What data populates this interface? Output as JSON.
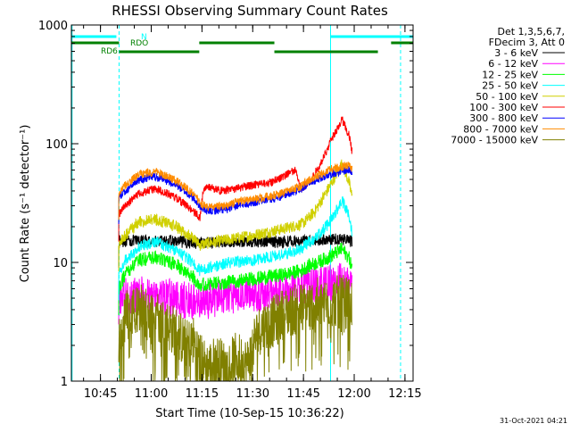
{
  "chart_data": {
    "type": "line",
    "title": "RHESSI Observing Summary Count Rates",
    "xlabel": "Start Time (10-Sep-15 10:36:22)",
    "ylabel": "Count Rate (s⁻¹ detector⁻¹)",
    "x_unit": "minutes after 10:36:22",
    "xlim": [
      0,
      101
    ],
    "ylim": [
      1,
      1000
    ],
    "y_scale": "log",
    "grid": false,
    "legend_position": "top-right",
    "x_ticks": [
      {
        "label": "10:45",
        "x": 8.6
      },
      {
        "label": "11:00",
        "x": 23.6
      },
      {
        "label": "11:15",
        "x": 38.6
      },
      {
        "label": "11:30",
        "x": 53.6
      },
      {
        "label": "11:45",
        "x": 68.6
      },
      {
        "label": "12:00",
        "x": 83.6
      },
      {
        "label": "12:15",
        "x": 98.6
      }
    ],
    "y_ticks": [
      {
        "label": "1",
        "y": 1
      },
      {
        "label": "10",
        "y": 10
      },
      {
        "label": "100",
        "y": 100
      },
      {
        "label": "1000",
        "y": 1000
      }
    ],
    "legend_header": [
      "Det 1,3,5,6,7,",
      "FDecim 3, Att 0"
    ],
    "timestamp": "31-Oct-2021 04:21",
    "series": [
      {
        "name": "3 - 6 keV",
        "color": "#000000",
        "x": [
          14,
          20,
          30,
          38,
          46,
          54,
          62,
          69,
          74,
          80,
          83
        ],
        "y": [
          15,
          15.2,
          15,
          14.6,
          15,
          15,
          15,
          15.2,
          15.5,
          15.8,
          15
        ]
      },
      {
        "name": "6 - 12 keV",
        "color": "#ff00ff",
        "x": [
          14,
          20,
          30,
          38,
          46,
          54,
          62,
          69,
          74,
          80,
          83
        ],
        "y": [
          5,
          5.3,
          5,
          4.6,
          5.2,
          5.4,
          5.6,
          6.2,
          6.5,
          6.9,
          6.6
        ]
      },
      {
        "name": "12 - 25 keV",
        "color": "#00ff00",
        "x": [
          14,
          16,
          20,
          25,
          31,
          36,
          38,
          40,
          46,
          54,
          62,
          68,
          69,
          72,
          76,
          80,
          82,
          83
        ],
        "y": [
          6,
          8,
          10.5,
          11,
          9.5,
          7.5,
          6.5,
          6.5,
          6.8,
          7.3,
          7.8,
          8.5,
          9,
          9.8,
          11,
          13,
          11,
          9
        ]
      },
      {
        "name": "25 - 50 keV",
        "color": "#00ffff",
        "x": [
          14,
          16,
          20,
          25,
          31,
          36,
          38,
          40,
          46,
          54,
          62,
          68,
          69,
          72,
          76,
          80,
          82,
          83
        ],
        "y": [
          8,
          10.5,
          13.5,
          15,
          12.5,
          10,
          8.5,
          9,
          9.8,
          10.5,
          11.5,
          13,
          14,
          16,
          21,
          33,
          25,
          18
        ]
      },
      {
        "name": "50 - 100 keV",
        "color": "#d0d000",
        "x": [
          14,
          16,
          20,
          25,
          31,
          36,
          38,
          40,
          46,
          54,
          62,
          68,
          69,
          72,
          76,
          80,
          82,
          83
        ],
        "y": [
          14,
          17,
          22,
          23,
          20,
          16,
          14,
          14.5,
          15.5,
          17,
          19,
          21,
          22,
          27,
          42,
          68,
          48,
          35
        ]
      },
      {
        "name": "100 - 300 keV",
        "color": "#ff0000",
        "x": [
          14,
          15,
          16,
          20,
          25,
          31,
          36,
          38,
          39,
          40,
          44,
          49,
          54,
          59,
          62,
          66,
          68,
          69,
          71,
          74,
          77,
          80,
          82,
          83
        ],
        "y": [
          25,
          28,
          30,
          38,
          42,
          35,
          27,
          24,
          40,
          44,
          40,
          42,
          45,
          47,
          52,
          60,
          42,
          44,
          50,
          70,
          110,
          160,
          120,
          85
        ]
      },
      {
        "name": "300 - 800 keV",
        "color": "#0000ff",
        "x": [
          14,
          16,
          20,
          25,
          31,
          36,
          38,
          40,
          46,
          50,
          54,
          62,
          68,
          69,
          72,
          76,
          80,
          82,
          83
        ],
        "y": [
          35,
          40,
          50,
          53,
          45,
          35,
          30,
          27,
          28,
          31,
          32,
          36,
          42,
          44,
          49,
          55,
          59,
          60,
          58
        ]
      },
      {
        "name": "800 - 7000 keV",
        "color": "#ff8c00",
        "x": [
          14,
          16,
          20,
          25,
          31,
          36,
          38,
          40,
          46,
          50,
          54,
          62,
          68,
          69,
          72,
          76,
          80,
          82,
          83
        ],
        "y": [
          38,
          45,
          55,
          58,
          49,
          38,
          32,
          29,
          30,
          33,
          34,
          38,
          44,
          47,
          52,
          60,
          64,
          65,
          62
        ]
      },
      {
        "name": "7000 - 15000 keV",
        "color": "#808000",
        "x": [
          14,
          16,
          20,
          25,
          31,
          34,
          36,
          38,
          40,
          43,
          46,
          49,
          52,
          54,
          56,
          60,
          62,
          66,
          69,
          72,
          76,
          80,
          83
        ],
        "y": [
          2.4,
          3.6,
          4.0,
          3.5,
          2.6,
          2.0,
          2.2,
          1.6,
          1.3,
          1.5,
          1.3,
          1.6,
          1.4,
          2.2,
          2.8,
          3.2,
          3.6,
          4.0,
          4.2,
          4.5,
          4.6,
          4.8,
          4.4
        ]
      }
    ],
    "flag_bars": [
      {
        "label": "N",
        "color": "#00ffff",
        "segments": [
          [
            0,
            13.3
          ],
          [
            76.6,
            101
          ]
        ]
      },
      {
        "label": "RDO",
        "color": "#008000",
        "segments": [
          [
            0,
            14.1
          ],
          [
            37.8,
            60
          ],
          [
            94.5,
            101
          ]
        ]
      },
      {
        "label": "RD6",
        "color": "#008000",
        "segments": [
          [
            14.1,
            37.8
          ],
          [
            60,
            90.6
          ]
        ]
      }
    ],
    "markers": [
      {
        "x": 0.2,
        "color": "#00ffff",
        "style": "solid"
      },
      {
        "x": 14.1,
        "color": "#00ffff",
        "style": "dashed"
      },
      {
        "x": 76.6,
        "color": "#00ffff",
        "style": "solid"
      },
      {
        "x": 97.3,
        "color": "#00ffff",
        "style": "dashed"
      }
    ]
  }
}
